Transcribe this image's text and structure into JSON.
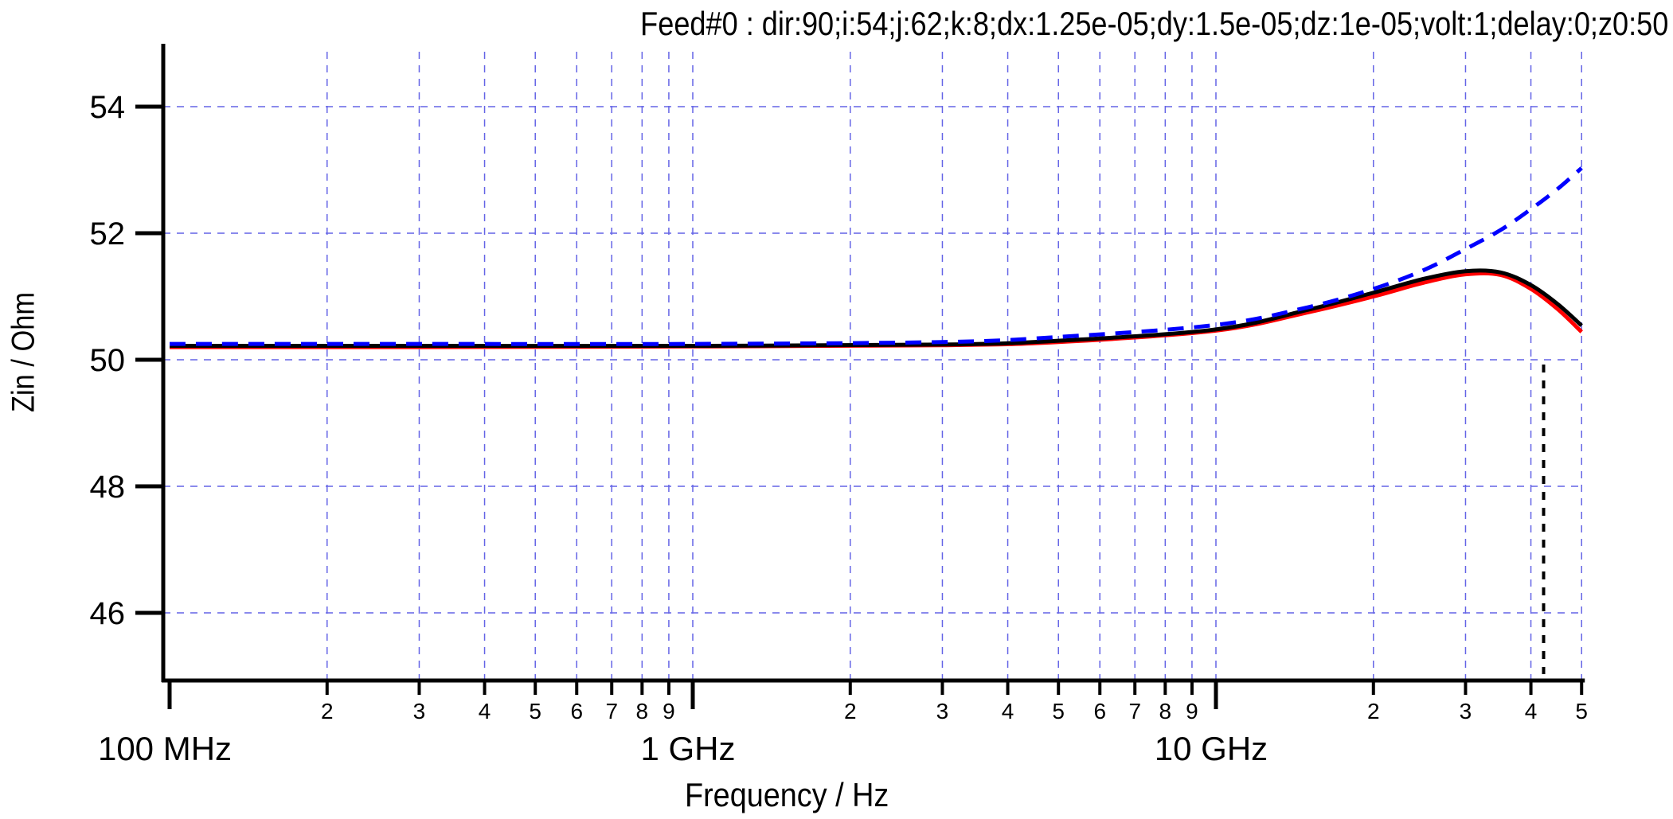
{
  "chart_data": {
    "type": "line",
    "title": "Feed#0 : dir:90;i:54;j:62;k:8;dx:1.25e-05;dy:1.5e-05;dz:1e-05;volt:1;delay:0;z0:50",
    "xlabel": "Frequency / Hz",
    "ylabel": "Zin / Ohm",
    "xscale": "log",
    "xlim": [
      100000000.0,
      50000000000.0
    ],
    "ylim": [
      44.9,
      55.2
    ],
    "yticks": [
      46,
      48,
      50,
      52,
      54
    ],
    "x_major_tick_labels": [
      "100 MHz",
      "1 GHz",
      "10 GHz"
    ],
    "x_minor_tick_labels": [
      "2",
      "3",
      "4",
      "5",
      "6",
      "7",
      "8",
      "9",
      "2",
      "3",
      "4",
      "5",
      "6",
      "7",
      "8",
      "9",
      "2",
      "3",
      "4",
      "5"
    ],
    "grid": true,
    "x": [
      100000000.0,
      300000000.0,
      1000000000.0,
      3000000000.0,
      5000000000.0,
      10000000000.0,
      15000000000.0,
      20000000000.0,
      25000000000.0,
      30000000000.0,
      35000000000.0,
      40000000000.0,
      45000000000.0,
      50000000000.0
    ],
    "series": [
      {
        "name": "black solid",
        "color": "#000000",
        "style": "solid",
        "values": [
          50.22,
          50.22,
          50.22,
          50.24,
          50.3,
          50.48,
          50.79,
          51.06,
          51.28,
          51.4,
          51.38,
          51.18,
          50.88,
          50.54
        ]
      },
      {
        "name": "red solid",
        "color": "#ff0000",
        "style": "solid",
        "values": [
          50.2,
          50.2,
          50.21,
          50.23,
          50.28,
          50.46,
          50.75,
          51.0,
          51.22,
          51.35,
          51.34,
          51.12,
          50.8,
          50.44
        ]
      },
      {
        "name": "blue dashed",
        "color": "#0000ff",
        "style": "dashed",
        "values": [
          50.25,
          50.25,
          50.25,
          50.28,
          50.36,
          50.55,
          50.83,
          51.12,
          51.42,
          51.75,
          52.05,
          52.38,
          52.7,
          53.03
        ]
      }
    ],
    "annotations": [
      {
        "type": "vertical-dotted-line",
        "x": 42300000000.0,
        "y_from": 44.9,
        "y_to": 50.0,
        "color": "#000000"
      }
    ]
  }
}
